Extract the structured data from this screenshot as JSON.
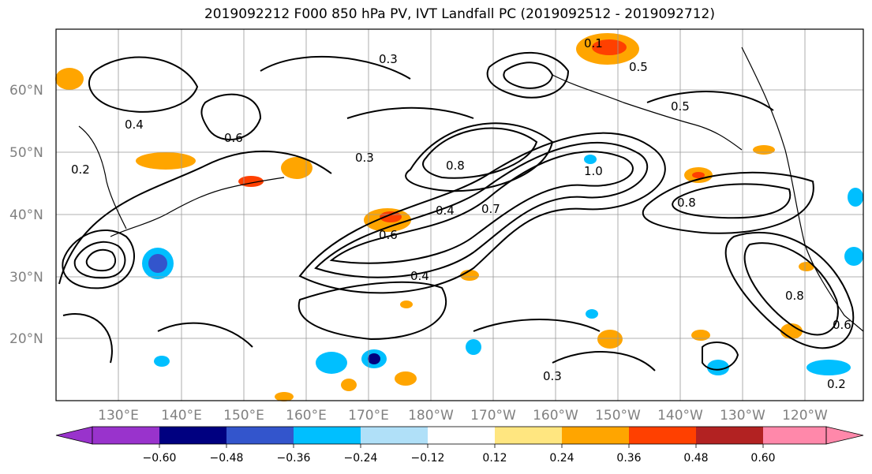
{
  "title": "2019092212 F000 850 hPa PV, IVT Landfall PC (2019092512 - 2019092712)",
  "latitudes": [
    "60°N",
    "50°N",
    "40°N",
    "30°N",
    "20°N"
  ],
  "longitudes": [
    "130°E",
    "140°E",
    "150°E",
    "160°E",
    "170°E",
    "180°W",
    "170°W",
    "160°W",
    "150°W",
    "140°W",
    "130°W",
    "120°W"
  ],
  "colorbar": {
    "ticks": [
      "−0.60",
      "−0.48",
      "−0.36",
      "−0.24",
      "−0.12",
      "0.12",
      "0.24",
      "0.36",
      "0.48",
      "0.60"
    ],
    "colors": [
      "#9933cc",
      "#000080",
      "#3355cc",
      "#00bfff",
      "#b0e0f8",
      "#ffffff",
      "#ffe680",
      "#ffa500",
      "#ff4000",
      "#b22222",
      "#ff88aa"
    ]
  },
  "contour_labels": [
    "0.3",
    "0.3",
    "0.3",
    "0.4",
    "0.4",
    "0.4",
    "0.5",
    "0.5",
    "0.6",
    "0.6",
    "0.6",
    "0.8",
    "0.8",
    "0.8",
    "0.2",
    "0.2",
    "0.1",
    "1.0",
    "0.7"
  ]
}
